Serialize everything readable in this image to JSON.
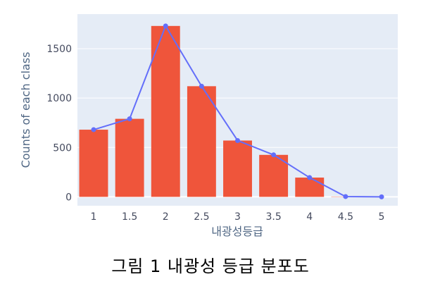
{
  "caption": "그림 1 내광성 등급 분포도",
  "chart_data": {
    "type": "bar",
    "x": [
      1,
      1.5,
      2,
      2.5,
      3,
      3.5,
      4,
      4.5,
      5
    ],
    "x_tick_labels": [
      "1",
      "1.5",
      "2",
      "2.5",
      "3",
      "3.5",
      "4",
      "4.5",
      "5"
    ],
    "series": [
      {
        "type": "bar",
        "values": [
          680,
          790,
          1730,
          1120,
          570,
          425,
          195,
          3,
          0
        ]
      },
      {
        "type": "line",
        "values": [
          680,
          790,
          1730,
          1120,
          570,
          425,
          195,
          3,
          0
        ]
      }
    ],
    "xlabel": "내광성등급",
    "ylabel": "Counts of each class",
    "ylim": [
      -90,
      1850
    ],
    "y_ticks": [
      0,
      500,
      1000,
      1500
    ],
    "y_tick_labels": [
      "0",
      "500",
      "1000",
      "1500"
    ],
    "grid": true,
    "colors": {
      "bar": "#ef553b",
      "line": "#636efa",
      "plot_bg": "#e5ecf6",
      "grid": "#ffffff"
    }
  }
}
